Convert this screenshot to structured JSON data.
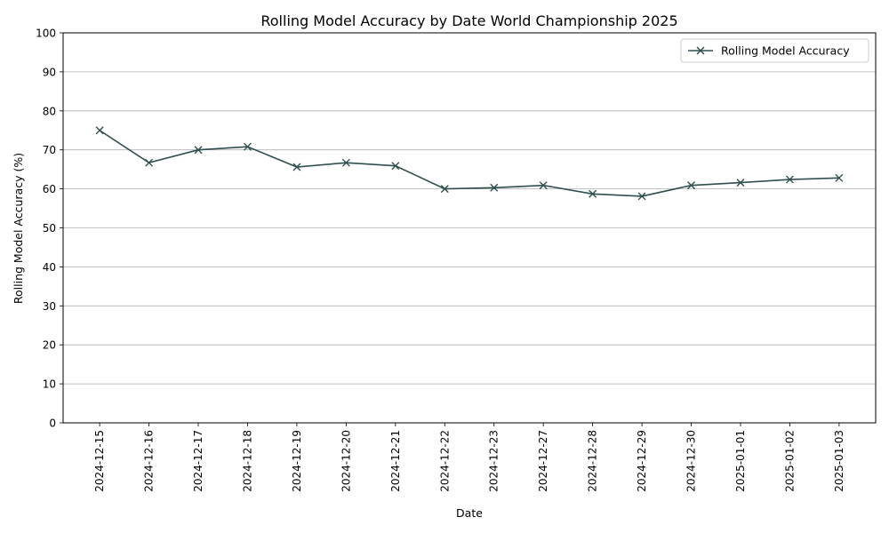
{
  "chart_data": {
    "type": "line",
    "title": "Rolling Model Accuracy by Date World Championship 2025",
    "xlabel": "Date",
    "ylabel": "Rolling Model Accuracy (%)",
    "ylim": [
      0,
      100
    ],
    "yticks": [
      0,
      10,
      20,
      30,
      40,
      50,
      60,
      70,
      80,
      90,
      100
    ],
    "grid": "horizontal",
    "legend_position": "top-right",
    "categories": [
      "2024-12-15",
      "2024-12-16",
      "2024-12-17",
      "2024-12-18",
      "2024-12-19",
      "2024-12-20",
      "2024-12-21",
      "2024-12-22",
      "2024-12-23",
      "2024-12-27",
      "2024-12-28",
      "2024-12-29",
      "2024-12-30",
      "2025-01-01",
      "2025-01-02",
      "2025-01-03"
    ],
    "series": [
      {
        "name": "Rolling Model Accuracy",
        "color": "#2f4f4f",
        "marker": "x",
        "values": [
          75.0,
          66.7,
          70.0,
          70.8,
          65.6,
          66.7,
          65.9,
          60.0,
          60.3,
          60.9,
          58.7,
          58.1,
          60.9,
          61.6,
          62.4,
          62.8
        ]
      }
    ]
  }
}
